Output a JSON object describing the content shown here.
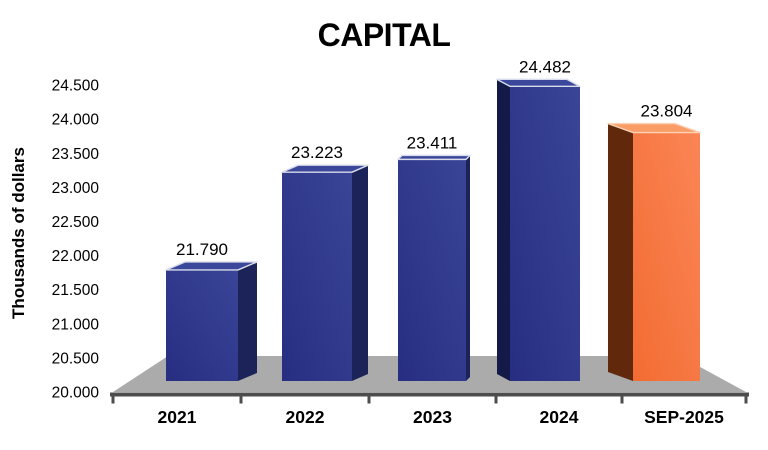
{
  "chart_data": {
    "type": "bar",
    "style": "3d-column",
    "title": "CAPITAL",
    "xlabel": "",
    "ylabel": "Thousands of dollars",
    "categories": [
      "2021",
      "2022",
      "2023",
      "2024",
      "SEP-2025"
    ],
    "values": [
      21.79,
      23.223,
      23.411,
      24.482,
      23.804
    ],
    "value_labels": [
      "21.790",
      "23.223",
      "23.411",
      "24.482",
      "23.804"
    ],
    "number_format": "dot as thousands separator",
    "ylim": [
      20.0,
      24.5
    ],
    "ytick_step": 0.5,
    "ytick_labels": [
      "20.000",
      "20.500",
      "21.000",
      "21.500",
      "22.000",
      "22.500",
      "23.000",
      "23.500",
      "24.000",
      "24.500"
    ],
    "bar_palette": [
      "blue",
      "blue",
      "blue",
      "blue",
      "orange"
    ],
    "highlight_category": "SEP-2025",
    "legend": "none",
    "grid": false
  },
  "colors": {
    "background": "#ffffff",
    "text": "#000000",
    "floor": "#ABABAB",
    "axis_line": "#4D4D4D",
    "blue_front_dark": "#272E81",
    "blue_front_light": "#3A4598",
    "blue_side_right": "#1C2359",
    "blue_side_left": "#131A48",
    "blue_top": "#3A479B",
    "blue_edge": "#D9DCEA",
    "orange_front_dark": "#F26C32",
    "orange_front_light": "#FB8556",
    "orange_side": "#61280C",
    "orange_top": "#F99C66",
    "orange_edge": "#FBD2B4"
  }
}
